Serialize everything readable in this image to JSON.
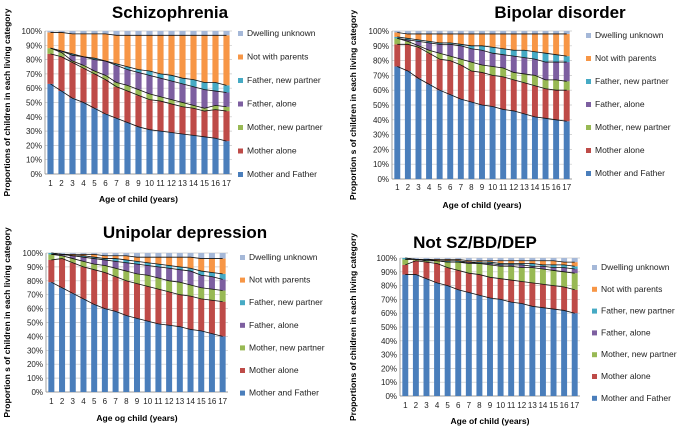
{
  "chart_data": [
    {
      "type": "bar",
      "stacked": true,
      "title": "Schizophrenia",
      "xlabel": "Age of child (years)",
      "ylabel": "Proportions of children  in each living category",
      "categories": [
        "1",
        "2",
        "3",
        "4",
        "5",
        "6",
        "7",
        "8",
        "9",
        "10",
        "11",
        "12",
        "13",
        "14",
        "15",
        "16",
        "17"
      ],
      "yticks": [
        "0%",
        "10%",
        "20%",
        "30%",
        "40%",
        "50%",
        "60%",
        "70%",
        "80%",
        "90%",
        "100%"
      ],
      "ylim": [
        0,
        100
      ],
      "legend_position": "right",
      "series": [
        {
          "name": "Mother and Father",
          "values": [
            63,
            58,
            53,
            50,
            46,
            42,
            39,
            36,
            33,
            31,
            30,
            29,
            28,
            27,
            26,
            25,
            23
          ]
        },
        {
          "name": "Mother alone",
          "values": [
            21,
            24,
            25,
            24,
            24,
            24,
            22,
            22,
            22,
            21,
            21,
            20,
            19,
            19,
            18,
            20,
            21
          ]
        },
        {
          "name": "Mother, new partner",
          "values": [
            4,
            3,
            1,
            2,
            2,
            3,
            3,
            4,
            4,
            4,
            3,
            3,
            3,
            2,
            2,
            3,
            3
          ]
        },
        {
          "name": "Father, alone",
          "values": [
            0,
            1,
            4,
            6,
            8,
            10,
            12,
            11,
            12,
            13,
            13,
            13,
            13,
            13,
            13,
            10,
            10
          ]
        },
        {
          "name": "Father, new partner",
          "values": [
            0,
            0,
            1,
            0,
            1,
            0,
            1,
            2,
            2,
            3,
            3,
            4,
            4,
            5,
            5,
            6,
            5
          ]
        },
        {
          "name": "Not with parents",
          "values": [
            11,
            13,
            14,
            16,
            17,
            19,
            20,
            22,
            24,
            25,
            27,
            28,
            30,
            31,
            33,
            33,
            35
          ]
        },
        {
          "name": "Dwelling unknown",
          "values": [
            1,
            1,
            2,
            2,
            2,
            2,
            3,
            3,
            3,
            3,
            3,
            3,
            3,
            3,
            3,
            3,
            3
          ]
        }
      ]
    },
    {
      "type": "bar",
      "stacked": true,
      "title": "Bipolar disorder",
      "xlabel": "Age of child (years)",
      "ylabel": "Proportion s of children  in each living category",
      "categories": [
        "1",
        "2",
        "3",
        "4",
        "5",
        "6",
        "7",
        "8",
        "9",
        "10",
        "11",
        "12",
        "13",
        "14",
        "15",
        "16",
        "17"
      ],
      "yticks": [
        "0%",
        "10%",
        "20%",
        "30%",
        "40%",
        "50%",
        "60%",
        "70%",
        "80%",
        "90%",
        "100%"
      ],
      "ylim": [
        0,
        100
      ],
      "legend_position": "right",
      "series": [
        {
          "name": "Mother and Father",
          "values": [
            76,
            73,
            68,
            64,
            60,
            57,
            54,
            52,
            50,
            49,
            47,
            46,
            44,
            42,
            41,
            40,
            39
          ]
        },
        {
          "name": "Mother alone",
          "values": [
            15,
            18,
            21,
            21,
            21,
            23,
            23,
            21,
            22,
            21,
            22,
            21,
            21,
            21,
            20,
            20,
            21
          ]
        },
        {
          "name": "Mother, new partner",
          "values": [
            4,
            2,
            1,
            2,
            4,
            3,
            4,
            6,
            5,
            6,
            6,
            5,
            6,
            7,
            6,
            7,
            6
          ]
        },
        {
          "name": "Father, alone",
          "values": [
            0,
            1,
            3,
            5,
            6,
            8,
            9,
            9,
            10,
            9,
            9,
            11,
            11,
            11,
            12,
            12,
            13
          ]
        },
        {
          "name": "Father, new partner",
          "values": [
            1,
            1,
            1,
            1,
            1,
            1,
            1,
            2,
            3,
            4,
            4,
            4,
            5,
            5,
            6,
            5,
            4
          ]
        },
        {
          "name": "Not with parents",
          "values": [
            3,
            3,
            4,
            5,
            6,
            6,
            7,
            8,
            8,
            9,
            10,
            11,
            11,
            12,
            13,
            14,
            15
          ]
        },
        {
          "name": "Dwelling unknown",
          "values": [
            1,
            2,
            2,
            2,
            2,
            2,
            2,
            2,
            2,
            2,
            2,
            2,
            2,
            2,
            2,
            2,
            2
          ]
        }
      ]
    },
    {
      "type": "bar",
      "stacked": true,
      "title": "Unipolar depression",
      "xlabel": "Age og child (years)",
      "ylabel": "Proportion s of children  in each living category",
      "categories": [
        "1",
        "2",
        "3",
        "4",
        "5",
        "6",
        "7",
        "8",
        "9",
        "10",
        "11",
        "12",
        "13",
        "14",
        "15",
        "16",
        "17"
      ],
      "yticks": [
        "0%",
        "10%",
        "20%",
        "30%",
        "40%",
        "50%",
        "60%",
        "70%",
        "80%",
        "90%",
        "100%"
      ],
      "ylim": [
        0,
        100
      ],
      "legend_position": "right",
      "series": [
        {
          "name": "Mother and Father",
          "values": [
            79,
            75,
            71,
            67,
            63,
            60,
            58,
            55,
            53,
            51,
            49,
            48,
            47,
            45,
            44,
            42,
            40
          ]
        },
        {
          "name": "Mother alone",
          "values": [
            16,
            21,
            22,
            23,
            25,
            26,
            25,
            25,
            25,
            25,
            25,
            24,
            23,
            24,
            23,
            24,
            25
          ]
        },
        {
          "name": "Mother, new partner",
          "values": [
            4,
            2,
            3,
            4,
            4,
            5,
            6,
            7,
            7,
            8,
            8,
            8,
            9,
            8,
            8,
            8,
            8
          ]
        },
        {
          "name": "Father, alone",
          "values": [
            0,
            1,
            2,
            3,
            4,
            4,
            5,
            6,
            7,
            7,
            8,
            9,
            9,
            10,
            9,
            9,
            8
          ]
        },
        {
          "name": "Father, new partner",
          "values": [
            1,
            0,
            0,
            1,
            1,
            1,
            2,
            2,
            2,
            2,
            2,
            2,
            2,
            2,
            3,
            3,
            4
          ]
        },
        {
          "name": "Not with parents",
          "values": [
            0,
            0,
            1,
            1,
            2,
            2,
            2,
            3,
            3,
            4,
            5,
            6,
            7,
            8,
            9,
            10,
            11
          ]
        },
        {
          "name": "Dwelling unknown",
          "values": [
            0,
            1,
            1,
            1,
            1,
            2,
            2,
            2,
            3,
            3,
            3,
            3,
            3,
            3,
            4,
            4,
            4
          ]
        }
      ]
    },
    {
      "type": "bar",
      "stacked": true,
      "title": "Not SZ/BD/DEP",
      "xlabel": "Age of child (years)",
      "ylabel": "Proportions of children  in each living category",
      "categories": [
        "1",
        "2",
        "3",
        "4",
        "5",
        "6",
        "7",
        "8",
        "9",
        "10",
        "11",
        "12",
        "13",
        "14",
        "15",
        "16",
        "17"
      ],
      "yticks": [
        "0%",
        "10%",
        "20%",
        "30%",
        "40%",
        "50%",
        "60%",
        "70%",
        "80%",
        "90%",
        "100%"
      ],
      "ylim": [
        0,
        100
      ],
      "legend_position": "right",
      "series": [
        {
          "name": "Mother and Father",
          "values": [
            88,
            88,
            85,
            82,
            80,
            77,
            75,
            73,
            71,
            70,
            68,
            67,
            65,
            64,
            63,
            62,
            60
          ]
        },
        {
          "name": "Mother alone",
          "values": [
            7,
            10,
            12,
            14,
            13,
            14,
            14,
            15,
            15,
            15,
            16,
            16,
            17,
            17,
            17,
            17,
            17
          ]
        },
        {
          "name": "Mother, new partner",
          "values": [
            4,
            1,
            1,
            2,
            4,
            6,
            7,
            8,
            9,
            9,
            10,
            10,
            11,
            11,
            11,
            11,
            12
          ]
        },
        {
          "name": "Father, alone",
          "values": [
            0,
            0,
            0,
            0,
            0,
            0,
            1,
            0,
            1,
            1,
            1,
            2,
            1,
            2,
            2,
            3,
            3
          ]
        },
        {
          "name": "Father, new partner",
          "values": [
            1,
            0,
            1,
            0,
            1,
            1,
            0,
            1,
            1,
            1,
            1,
            1,
            2,
            1,
            2,
            2,
            2
          ]
        },
        {
          "name": "Not with parents",
          "values": [
            0,
            0,
            0,
            1,
            1,
            1,
            1,
            1,
            1,
            2,
            2,
            2,
            2,
            3,
            3,
            2,
            3
          ]
        },
        {
          "name": "Dwelling unknown",
          "values": [
            0,
            1,
            1,
            1,
            1,
            1,
            2,
            2,
            2,
            2,
            2,
            2,
            2,
            2,
            2,
            3,
            3
          ]
        }
      ]
    }
  ],
  "colors": {
    "Mother and Father": "#4a7ebb",
    "Mother alone": "#be4b48",
    "Mother, new partner": "#98b954",
    "Father, alone": "#7d5fa0",
    "Father, new partner": "#46aac4",
    "Not with parents": "#f79646",
    "Dwelling unknown": "#a5b8d8"
  }
}
